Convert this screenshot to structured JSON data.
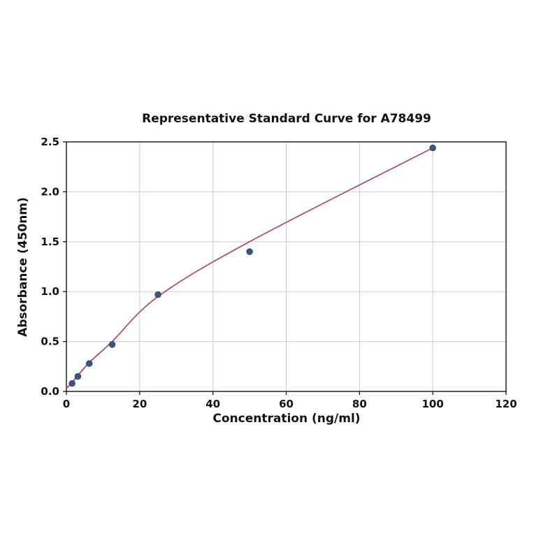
{
  "chart_data": {
    "type": "scatter",
    "title": "Representative Standard Curve for A78499",
    "xlabel": "Concentration (ng/ml)",
    "ylabel": "Absorbance (450nm)",
    "xlim": [
      0,
      120
    ],
    "ylim": [
      0,
      2.5
    ],
    "x_ticks": [
      0,
      20,
      40,
      60,
      80,
      100,
      120
    ],
    "y_ticks": [
      0.0,
      0.5,
      1.0,
      1.5,
      2.0,
      2.5
    ],
    "grid": true,
    "legend": "none",
    "points": [
      [
        1.56,
        0.08
      ],
      [
        3.125,
        0.15
      ],
      [
        6.25,
        0.28
      ],
      [
        12.5,
        0.47
      ],
      [
        25,
        0.97
      ],
      [
        50,
        1.4
      ],
      [
        100,
        2.44
      ]
    ],
    "fit_line": [
      [
        0,
        0.03
      ],
      [
        1.56,
        0.09
      ],
      [
        3.125,
        0.16
      ],
      [
        6.25,
        0.29
      ],
      [
        12.5,
        0.5
      ],
      [
        25,
        0.95
      ],
      [
        50,
        1.5
      ],
      [
        100,
        2.44
      ]
    ],
    "point_color": "#3a587f",
    "line_color": "#a9486c",
    "grid_color": "#cccccc",
    "frame_color": "#000000"
  }
}
